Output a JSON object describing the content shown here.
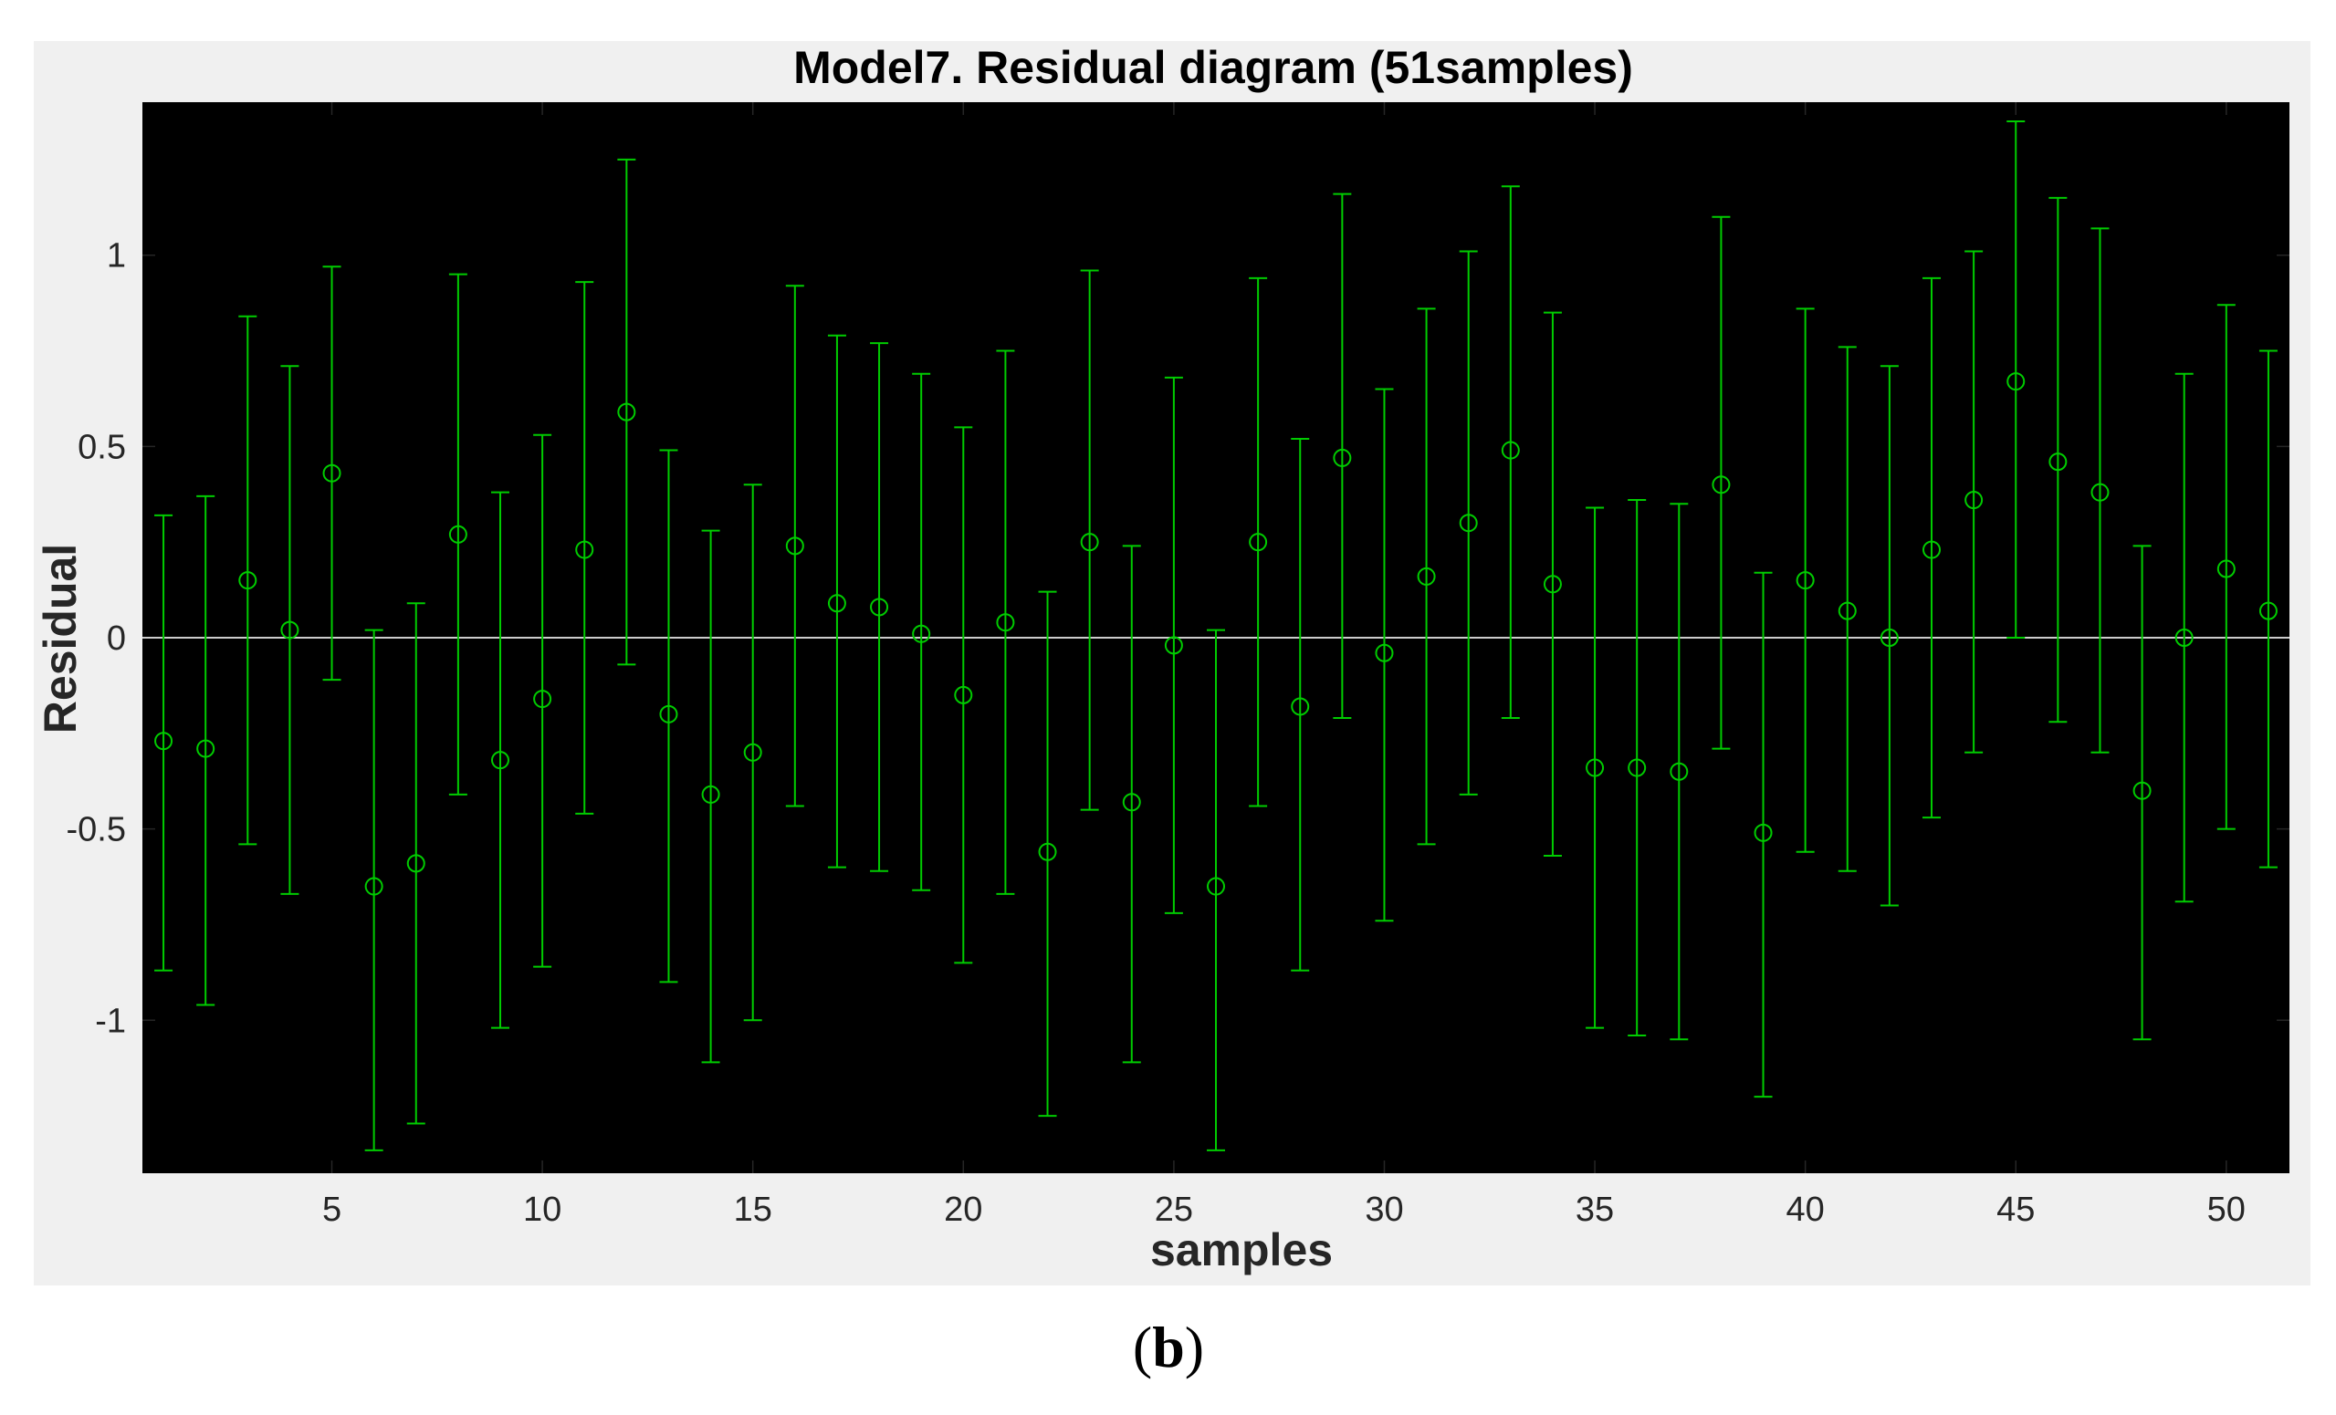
{
  "chart_data": {
    "type": "errorbar",
    "title": "Model7. Residual diagram (51samples)",
    "xlabel": "samples",
    "ylabel": "Residual",
    "xlim": [
      0.5,
      51.5
    ],
    "ylim": [
      -1.4,
      1.4
    ],
    "xticks": [
      5,
      10,
      15,
      20,
      25,
      30,
      35,
      40,
      45,
      50
    ],
    "yticks": [
      -1,
      -0.5,
      0,
      0.5,
      1
    ],
    "ytick_labels": [
      "-1",
      "-0.5",
      "0",
      "0.5",
      "1"
    ],
    "reference_line": 0,
    "colors": {
      "figure_background": "#f0f0f0",
      "axes_background": "#000000",
      "series": "#00cc00",
      "zero_line": "#cccccc"
    },
    "series": [
      {
        "x": [
          1,
          2,
          3,
          4,
          5,
          6,
          7,
          8,
          9,
          10,
          11,
          12,
          13,
          14,
          15,
          16,
          17,
          18,
          19,
          20,
          21,
          22,
          23,
          24,
          25,
          26,
          27,
          28,
          29,
          30,
          31,
          32,
          33,
          34,
          35,
          36,
          37,
          38,
          39,
          40,
          41,
          42,
          43,
          44,
          45,
          46,
          47,
          48,
          49,
          50,
          51
        ],
        "y": [
          -0.27,
          -0.29,
          0.15,
          0.02,
          0.43,
          -0.65,
          -0.59,
          0.27,
          -0.32,
          -0.16,
          0.23,
          0.59,
          -0.2,
          -0.41,
          -0.3,
          0.24,
          0.09,
          0.08,
          0.01,
          -0.15,
          0.04,
          -0.56,
          0.25,
          -0.43,
          -0.02,
          -0.65,
          0.25,
          -0.18,
          0.47,
          -0.04,
          0.16,
          0.3,
          0.49,
          0.14,
          -0.34,
          -0.34,
          -0.35,
          0.4,
          -0.51,
          0.15,
          0.07,
          0.0,
          0.23,
          0.36,
          0.67,
          0.46,
          0.38,
          -0.4,
          0.0,
          0.18,
          0.07
        ],
        "lower": [
          -0.87,
          -0.96,
          -0.54,
          -0.67,
          -0.11,
          -1.34,
          -1.27,
          -0.41,
          -1.02,
          -0.86,
          -0.46,
          -0.07,
          -0.9,
          -1.11,
          -1.0,
          -0.44,
          -0.6,
          -0.61,
          -0.66,
          -0.85,
          -0.67,
          -1.25,
          -0.45,
          -1.11,
          -0.72,
          -1.34,
          -0.44,
          -0.87,
          -0.21,
          -0.74,
          -0.54,
          -0.41,
          -0.21,
          -0.57,
          -1.02,
          -1.04,
          -1.05,
          -0.29,
          -1.2,
          -0.56,
          -0.61,
          -0.7,
          -0.47,
          -0.3,
          0.0,
          -0.22,
          -0.3,
          -1.05,
          -0.69,
          -0.5,
          -0.6
        ],
        "upper": [
          0.32,
          0.37,
          0.84,
          0.71,
          0.97,
          0.02,
          0.09,
          0.95,
          0.38,
          0.53,
          0.93,
          1.25,
          0.49,
          0.28,
          0.4,
          0.92,
          0.79,
          0.77,
          0.69,
          0.55,
          0.75,
          0.12,
          0.96,
          0.24,
          0.68,
          0.02,
          0.94,
          0.52,
          1.16,
          0.65,
          0.86,
          1.01,
          1.18,
          0.85,
          0.34,
          0.36,
          0.35,
          1.1,
          0.17,
          0.86,
          0.76,
          0.71,
          0.94,
          1.01,
          1.35,
          1.15,
          1.07,
          0.24,
          0.69,
          0.87,
          0.75
        ]
      }
    ]
  },
  "caption": {
    "open": "(",
    "letter": "b",
    "close": ")"
  }
}
